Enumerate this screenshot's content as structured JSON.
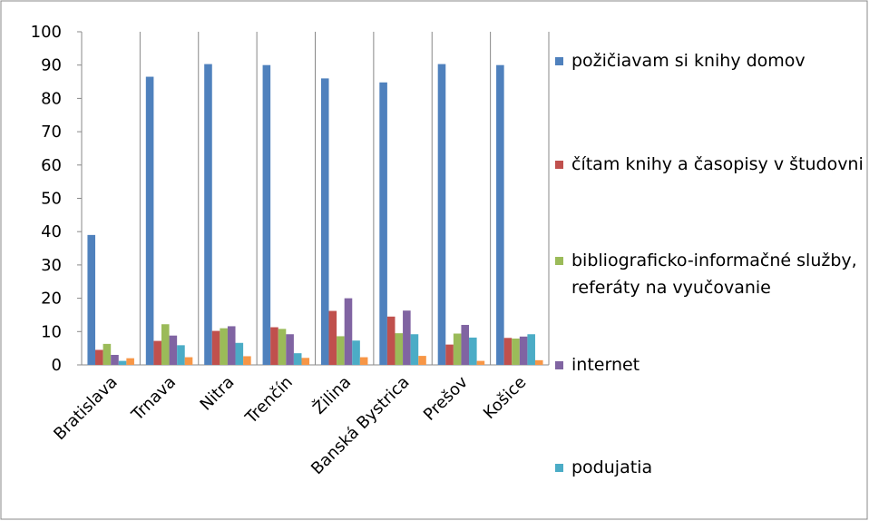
{
  "chart_data": {
    "type": "bar",
    "categories": [
      "Bratislava",
      "Trnava",
      "Nitra",
      "Trenčín",
      "Žilina",
      "Banská Bystrica",
      "Prešov",
      "Košice"
    ],
    "series": [
      {
        "name": "požičiavam si knihy domov",
        "color": "#4f81bd",
        "values": [
          39,
          86.5,
          90.3,
          90,
          86,
          84.8,
          90.3,
          90
        ]
      },
      {
        "name": "čítam knihy a časopisy v študovni",
        "color": "#c0504d",
        "values": [
          4.5,
          7.2,
          10.2,
          11.3,
          16.2,
          14.5,
          6.1,
          8.1
        ]
      },
      {
        "name": "bibliograficko-informačné služby, referáty na vyučovanie",
        "color": "#9bbb59",
        "values": [
          6.3,
          12.2,
          11,
          10.8,
          8.6,
          9.5,
          9.4,
          7.9
        ]
      },
      {
        "name": "internet",
        "color": "#8064a2",
        "values": [
          3,
          8.8,
          11.6,
          9.2,
          20,
          16.3,
          12,
          8.5
        ]
      },
      {
        "name": "podujatia",
        "color": "#4bacc6",
        "values": [
          1.2,
          5.9,
          6.6,
          3.5,
          7.3,
          9.2,
          8.2,
          9.2
        ]
      },
      {
        "color": "#f79646",
        "values": [
          2,
          2.3,
          2.6,
          2.1,
          2.3,
          2.7,
          1.2,
          1.4
        ]
      }
    ],
    "ylim": [
      0,
      100
    ],
    "yticks": [
      0,
      10,
      20,
      30,
      40,
      50,
      60,
      70,
      80,
      90,
      100
    ],
    "grid": false
  }
}
